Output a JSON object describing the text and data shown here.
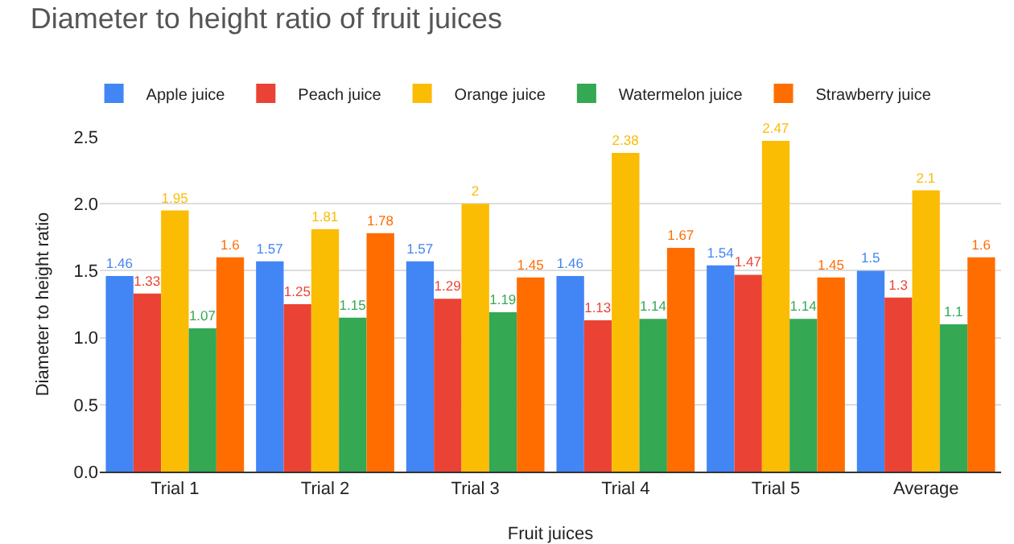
{
  "chart_data": {
    "type": "bar",
    "title": "Diameter to height ratio of fruit juices",
    "xlabel": "Fruit juices",
    "ylabel": "Diameter to height ratio",
    "categories": [
      "Trial 1",
      "Trial 2",
      "Trial 3",
      "Trial 4",
      "Trial 5",
      "Average"
    ],
    "series": [
      {
        "name": "Apple juice",
        "color": "#4285f4",
        "values": [
          1.46,
          1.57,
          1.57,
          1.46,
          1.54,
          1.5
        ]
      },
      {
        "name": "Peach juice",
        "color": "#ea4335",
        "values": [
          1.33,
          1.25,
          1.29,
          1.13,
          1.47,
          1.3
        ]
      },
      {
        "name": "Orange juice",
        "color": "#fbbc04",
        "values": [
          1.95,
          1.81,
          2,
          2.38,
          2.47,
          2.1
        ]
      },
      {
        "name": "Watermelon juice",
        "color": "#34a853",
        "values": [
          1.07,
          1.15,
          1.19,
          1.14,
          1.14,
          1.1
        ]
      },
      {
        "name": "Strawberry juice",
        "color": "#ff6d01",
        "values": [
          1.6,
          1.78,
          1.45,
          1.67,
          1.45,
          1.6
        ]
      }
    ],
    "ylim": [
      0,
      2.5
    ],
    "yticks": [
      {
        "value": 0,
        "label": "0.0"
      },
      {
        "value": 0.5,
        "label": "0.5"
      },
      {
        "value": 1,
        "label": "1.0"
      },
      {
        "value": 1.5,
        "label": "1.5"
      },
      {
        "value": 2,
        "label": "2.0"
      },
      {
        "value": 2.5,
        "label": "2.5"
      }
    ],
    "grid": "y",
    "legend": "top",
    "data_labels": true
  }
}
